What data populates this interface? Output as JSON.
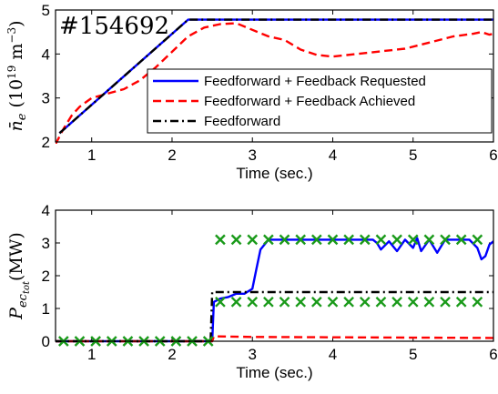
{
  "chart_data": [
    {
      "type": "line",
      "annotation": "#154692",
      "ylabel": "n̄e (10¹⁹ m⁻³)",
      "xlabel": "Time (sec.)",
      "xlim": [
        0.55,
        6.0
      ],
      "ylim": [
        2,
        5
      ],
      "xticks": [
        1,
        2,
        3,
        4,
        5,
        6
      ],
      "yticks": [
        2,
        3,
        4,
        5
      ],
      "legend": "bottom-right",
      "series": [
        {
          "name": "Feedforward + Feedback Requested",
          "color": "#0000ff",
          "style": "solid",
          "points": [
            [
              0.6,
              2.2
            ],
            [
              2.2,
              4.78
            ],
            [
              6.0,
              4.78
            ]
          ]
        },
        {
          "name": "Feedforward + Feedback Achieved",
          "color": "#ff0000",
          "style": "dashed",
          "points": [
            [
              0.55,
              1.95
            ],
            [
              0.65,
              2.3
            ],
            [
              0.75,
              2.6
            ],
            [
              0.85,
              2.8
            ],
            [
              1.0,
              3.0
            ],
            [
              1.2,
              3.1
            ],
            [
              1.4,
              3.2
            ],
            [
              1.6,
              3.4
            ],
            [
              1.8,
              3.7
            ],
            [
              2.0,
              4.05
            ],
            [
              2.2,
              4.4
            ],
            [
              2.4,
              4.6
            ],
            [
              2.6,
              4.68
            ],
            [
              2.8,
              4.7
            ],
            [
              3.0,
              4.55
            ],
            [
              3.2,
              4.4
            ],
            [
              3.4,
              4.32
            ],
            [
              3.6,
              4.1
            ],
            [
              3.8,
              3.98
            ],
            [
              4.0,
              3.94
            ],
            [
              4.3,
              4.0
            ],
            [
              4.6,
              4.06
            ],
            [
              4.9,
              4.12
            ],
            [
              5.2,
              4.26
            ],
            [
              5.5,
              4.4
            ],
            [
              5.75,
              4.46
            ],
            [
              5.85,
              4.5
            ],
            [
              5.95,
              4.44
            ],
            [
              6.0,
              4.46
            ]
          ]
        },
        {
          "name": "Feedforward",
          "color": "#000000",
          "style": "dashdot",
          "points": [
            [
              0.6,
              2.2
            ],
            [
              2.2,
              4.78
            ],
            [
              6.0,
              4.78
            ]
          ]
        }
      ]
    },
    {
      "type": "line",
      "ylabel": "Pec_tot (MW)",
      "xlabel": "Time (sec.)",
      "xlim": [
        0.55,
        6.0
      ],
      "ylim": [
        0,
        4
      ],
      "xticks": [
        1,
        2,
        3,
        4,
        5,
        6
      ],
      "yticks": [
        0,
        1,
        2,
        3,
        4
      ],
      "series": [
        {
          "color": "#0000ff",
          "style": "solid",
          "points": [
            [
              0.55,
              0.0
            ],
            [
              2.45,
              0.0
            ],
            [
              2.5,
              0.0
            ],
            [
              2.52,
              1.2
            ],
            [
              2.6,
              1.3
            ],
            [
              2.7,
              1.35
            ],
            [
              2.8,
              1.45
            ],
            [
              2.9,
              1.45
            ],
            [
              3.0,
              1.6
            ],
            [
              3.05,
              2.2
            ],
            [
              3.1,
              2.8
            ],
            [
              3.2,
              3.1
            ],
            [
              4.5,
              3.1
            ],
            [
              4.55,
              3.0
            ],
            [
              4.6,
              2.8
            ],
            [
              4.7,
              3.05
            ],
            [
              4.8,
              2.75
            ],
            [
              4.9,
              3.1
            ],
            [
              5.0,
              2.85
            ],
            [
              5.05,
              3.15
            ],
            [
              5.1,
              2.75
            ],
            [
              5.2,
              3.1
            ],
            [
              5.3,
              2.7
            ],
            [
              5.4,
              3.1
            ],
            [
              5.7,
              3.1
            ],
            [
              5.8,
              2.85
            ],
            [
              5.85,
              2.5
            ],
            [
              5.9,
              2.6
            ],
            [
              5.95,
              2.95
            ],
            [
              6.0,
              3.05
            ]
          ]
        },
        {
          "color": "#ff0000",
          "style": "dashed",
          "points": [
            [
              0.55,
              0.0
            ],
            [
              2.5,
              0.0
            ],
            [
              2.52,
              0.15
            ],
            [
              3.0,
              0.13
            ],
            [
              6.0,
              0.1
            ]
          ]
        },
        {
          "color": "#000000",
          "style": "dashdot",
          "points": [
            [
              0.55,
              0.0
            ],
            [
              2.48,
              0.0
            ],
            [
              2.5,
              1.5
            ],
            [
              6.0,
              1.5
            ]
          ]
        }
      ],
      "markers": {
        "color": "#1a9a1a",
        "symbol": "x",
        "groups": [
          {
            "y": 0.0,
            "x": [
              0.65,
              0.85,
              1.05,
              1.25,
              1.45,
              1.65,
              1.85,
              2.05,
              2.25,
              2.45
            ]
          },
          {
            "y": 1.2,
            "x": [
              2.6,
              2.8,
              3.0,
              3.2,
              3.4,
              3.6,
              3.8,
              4.0,
              4.2,
              4.4,
              4.6,
              4.8,
              5.0,
              5.2,
              5.4,
              5.6,
              5.8
            ]
          },
          {
            "y": 3.1,
            "x": [
              2.6,
              2.8,
              3.0,
              3.2,
              3.4,
              3.6,
              3.8,
              4.0,
              4.2,
              4.4,
              4.6,
              4.8,
              5.0,
              5.2,
              5.4,
              5.6,
              5.8
            ]
          }
        ]
      }
    }
  ]
}
